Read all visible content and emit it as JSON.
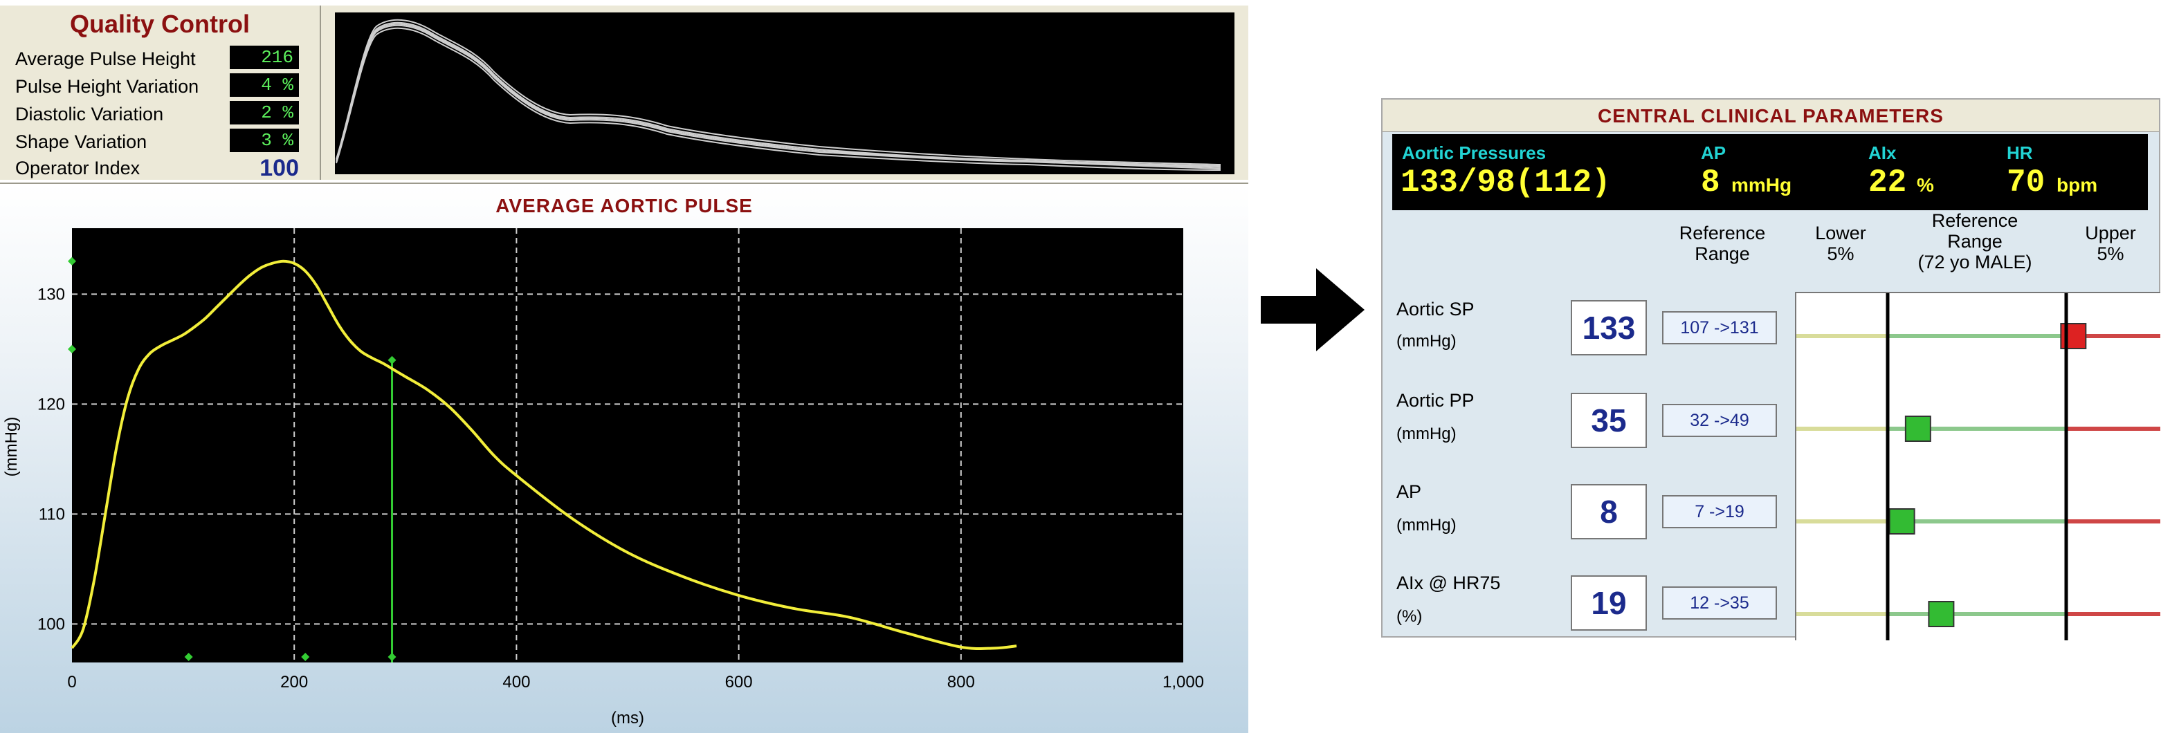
{
  "quality_control": {
    "title": "Quality Control",
    "rows": [
      {
        "label": "Average Pulse Height",
        "value": "216"
      },
      {
        "label": "Pulse Height Variation",
        "value": "4 %"
      },
      {
        "label": "Diastolic Variation",
        "value": "2 %"
      },
      {
        "label": "Shape Variation",
        "value": "3 %"
      }
    ],
    "operator_index_label": "Operator Index",
    "operator_index_value": "100"
  },
  "chart_data": {
    "type": "line",
    "title": "AVERAGE AORTIC PULSE",
    "xlabel": "(ms)",
    "ylabel": "(mmHg)",
    "xlim": [
      0,
      1000
    ],
    "ylim": [
      96.5,
      136
    ],
    "x_ticks": [
      0,
      200,
      400,
      600,
      800,
      1000
    ],
    "x_tick_labels": [
      "0",
      "200",
      "400",
      "600",
      "800",
      "1,000"
    ],
    "y_ticks": [
      100,
      110,
      120,
      130
    ],
    "y_tick_labels": [
      "100",
      "110",
      "120",
      "130"
    ],
    "grid": true,
    "series": [
      {
        "color": "#f2ee3a",
        "x": [
          0,
          10,
          20,
          30,
          40,
          50,
          60,
          70,
          80,
          90,
          100,
          110,
          120,
          130,
          140,
          150,
          160,
          170,
          180,
          190,
          200,
          210,
          220,
          230,
          240,
          250,
          260,
          270,
          280,
          290,
          300,
          320,
          340,
          360,
          380,
          400,
          450,
          500,
          550,
          600,
          650,
          700,
          750,
          800,
          830,
          850
        ],
        "y": [
          97.8,
          99.5,
          104,
          110,
          116,
          120.5,
          123.2,
          124.6,
          125.3,
          125.8,
          126.3,
          127,
          127.8,
          128.8,
          129.8,
          130.8,
          131.7,
          132.4,
          132.8,
          133,
          132.8,
          132.1,
          130.8,
          129,
          127.2,
          125.8,
          124.8,
          124.2,
          123.7,
          123.1,
          122.5,
          121.3,
          119.7,
          117.6,
          115.3,
          113.5,
          109.6,
          106.5,
          104.3,
          102.6,
          101.4,
          100.6,
          99.2,
          97.9,
          97.8,
          98.0
        ]
      }
    ],
    "markers": {
      "color": "#33cc33",
      "cursor_x": 288,
      "points": [
        {
          "x": 0,
          "y": 133
        },
        {
          "x": 0,
          "y": 125
        },
        {
          "x": 105,
          "y": 97
        },
        {
          "x": 210,
          "y": 97
        },
        {
          "x": 288,
          "y": 97
        },
        {
          "x": 288,
          "y": 124
        }
      ]
    }
  },
  "central_params": {
    "title": "CENTRAL CLINICAL PARAMETERS",
    "aortic_pressures_label": "Aortic Pressures",
    "aortic_pressures_value": "133/98(112)",
    "ap_label": "AP",
    "ap_value": "8",
    "ap_unit": "mmHg",
    "aix_label": "AIx",
    "aix_value": "22",
    "aix_unit": "%",
    "hr_label": "HR",
    "hr_value": "70",
    "hr_unit": "bpm",
    "columns": {
      "reference_range_line1": "Reference",
      "reference_range_line2": "Range",
      "lower_line1": "Lower",
      "lower_line2": "5%",
      "ref_top_line1": "Reference",
      "ref_top_line2": "Range",
      "ref_top_line3": "(72 yo MALE)",
      "upper_line1": "Upper",
      "upper_line2": "5%"
    },
    "rows": [
      {
        "label": "Aortic SP",
        "unit": "(mmHg)",
        "value": "133",
        "range": "107 ->131",
        "marker_fraction": 1.04,
        "marker_color": "#dd2222"
      },
      {
        "label": "Aortic PP",
        "unit": "(mmHg)",
        "value": "35",
        "range": "32 ->49",
        "marker_fraction": 0.17,
        "marker_color": "#33bb33"
      },
      {
        "label": "AP",
        "unit": "(mmHg)",
        "value": "8",
        "range": "7 ->19",
        "marker_fraction": 0.08,
        "marker_color": "#33bb33"
      },
      {
        "label": "AIx @ HR75",
        "unit": "(%)",
        "value": "19",
        "range": "12 ->35",
        "marker_fraction": 0.3,
        "marker_color": "#33bb33"
      }
    ]
  }
}
